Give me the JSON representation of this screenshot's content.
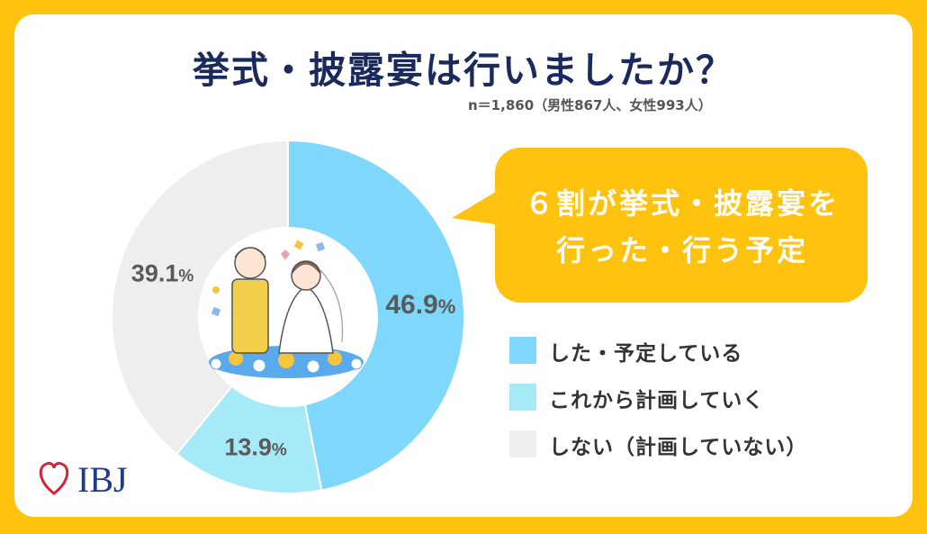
{
  "title": "挙式・披露宴は行いましたか？",
  "sample_note": "n＝1,860（男性867人、女性993人）",
  "callout": {
    "line1": "６割が挙式・披露宴を",
    "line2": "行った・行う予定",
    "color": "#ffc20e"
  },
  "chart_data": {
    "type": "pie",
    "donut": true,
    "start": "top, clockwise",
    "legend_position": "right",
    "categories": [
      "した・予定している",
      "これから計画していく",
      "しない（計画していない）"
    ],
    "values": [
      46.9,
      13.9,
      39.1
    ],
    "labels": [
      "46.9",
      "13.9",
      "39.1"
    ],
    "unit": "%",
    "colors": [
      "#7fd7fb",
      "#a6eaf7",
      "#eeeeee"
    ]
  },
  "logo": {
    "text": "IBJ",
    "icon": "heart-outline-icon",
    "color": "#1f3a8a",
    "accent": "#d6213a"
  },
  "center_illustration": "wedding-couple-icon"
}
